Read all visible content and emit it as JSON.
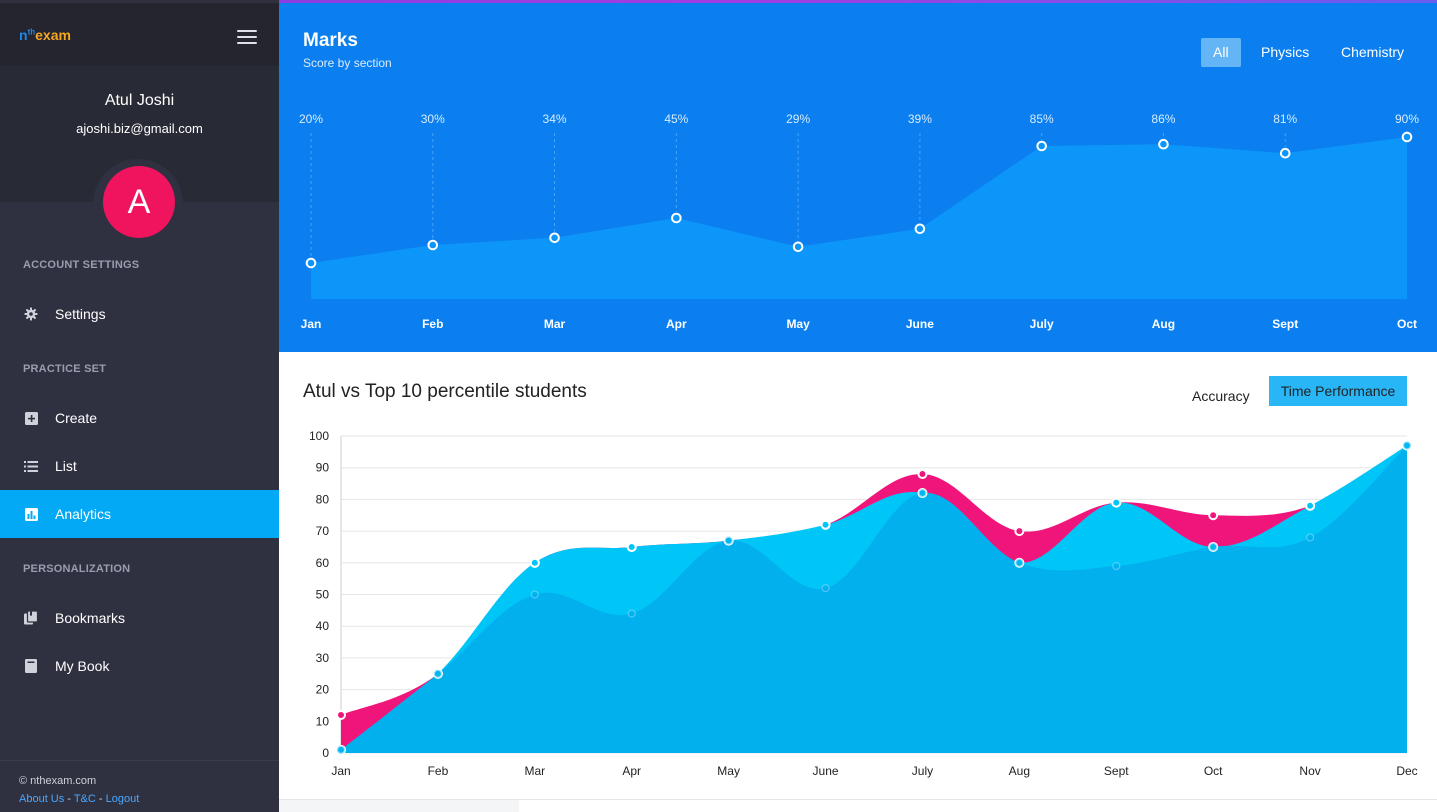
{
  "brand": {
    "pre": "n",
    "sup": "th",
    "name": "exam"
  },
  "profile": {
    "name": "Atul Joshi",
    "email": "ajoshi.biz@gmail.com",
    "avatar_letter": "A"
  },
  "sidebar": {
    "sections": [
      {
        "title": "ACCOUNT SETTINGS"
      },
      {
        "title": "PRACTICE SET"
      },
      {
        "title": "PERSONALIZATION"
      }
    ],
    "items": [
      {
        "label": "Settings",
        "icon": "gear-icon"
      },
      {
        "label": "Create",
        "icon": "plus-square-icon"
      },
      {
        "label": "List",
        "icon": "list-icon"
      },
      {
        "label": "Analytics",
        "icon": "bar-chart-icon",
        "active": true
      },
      {
        "label": "Bookmarks",
        "icon": "bookmarks-icon"
      },
      {
        "label": "My Book",
        "icon": "book-icon"
      }
    ]
  },
  "footer": {
    "copyright": "© nthexam.com",
    "about": "About Us",
    "sep": " - ",
    "tc": "T&C",
    "logout": "Logout"
  },
  "marks": {
    "title": "Marks",
    "subtitle": "Score by section",
    "filters": [
      "All",
      "Physics",
      "Chemistry"
    ],
    "active_filter": "All"
  },
  "perf": {
    "title": "Atul vs Top 10 percentile students",
    "toggle_accuracy": "Accuracy",
    "toggle_time": "Time Performance"
  },
  "colors": {
    "sidebar": "#2f3140",
    "active": "#03a9f4",
    "marks_bg": "#0b7ff0",
    "marks_area": "#0d96f9",
    "pink": "#f0157a",
    "cyan": "#00c6f8",
    "blue_area": "#03b0ee"
  },
  "chart_data": [
    {
      "type": "area",
      "x": [
        "Jan",
        "Feb",
        "Mar",
        "Apr",
        "May",
        "June",
        "July",
        "Aug",
        "Sept",
        "Oct"
      ],
      "values": [
        20,
        30,
        34,
        45,
        29,
        39,
        85,
        86,
        81,
        90
      ],
      "data_labels": [
        "20%",
        "30%",
        "34%",
        "45%",
        "29%",
        "39%",
        "85%",
        "86%",
        "81%",
        "90%"
      ],
      "ylim": [
        0,
        100
      ],
      "grid": false
    },
    {
      "type": "area",
      "x": [
        "Jan",
        "Feb",
        "Mar",
        "Apr",
        "May",
        "June",
        "July",
        "Aug",
        "Sept",
        "Oct",
        "Nov",
        "Dec"
      ],
      "y_ticks": [
        0,
        10,
        20,
        30,
        40,
        50,
        60,
        70,
        80,
        90,
        100
      ],
      "ylim": [
        0,
        100
      ],
      "grid": true,
      "series": [
        {
          "values": [
            12,
            25,
            60,
            65,
            67,
            72,
            88,
            70,
            79,
            75,
            78,
            97
          ],
          "color": "#f0157a"
        },
        {
          "values": [
            1,
            25,
            60,
            65,
            67,
            72,
            82,
            60,
            79,
            65,
            78,
            97
          ],
          "color": "#00c6f8"
        },
        {
          "values": [
            1,
            25,
            50,
            44,
            67,
            52,
            82,
            60,
            59,
            65,
            68,
            97
          ],
          "color": "#03b0ee"
        }
      ]
    }
  ]
}
